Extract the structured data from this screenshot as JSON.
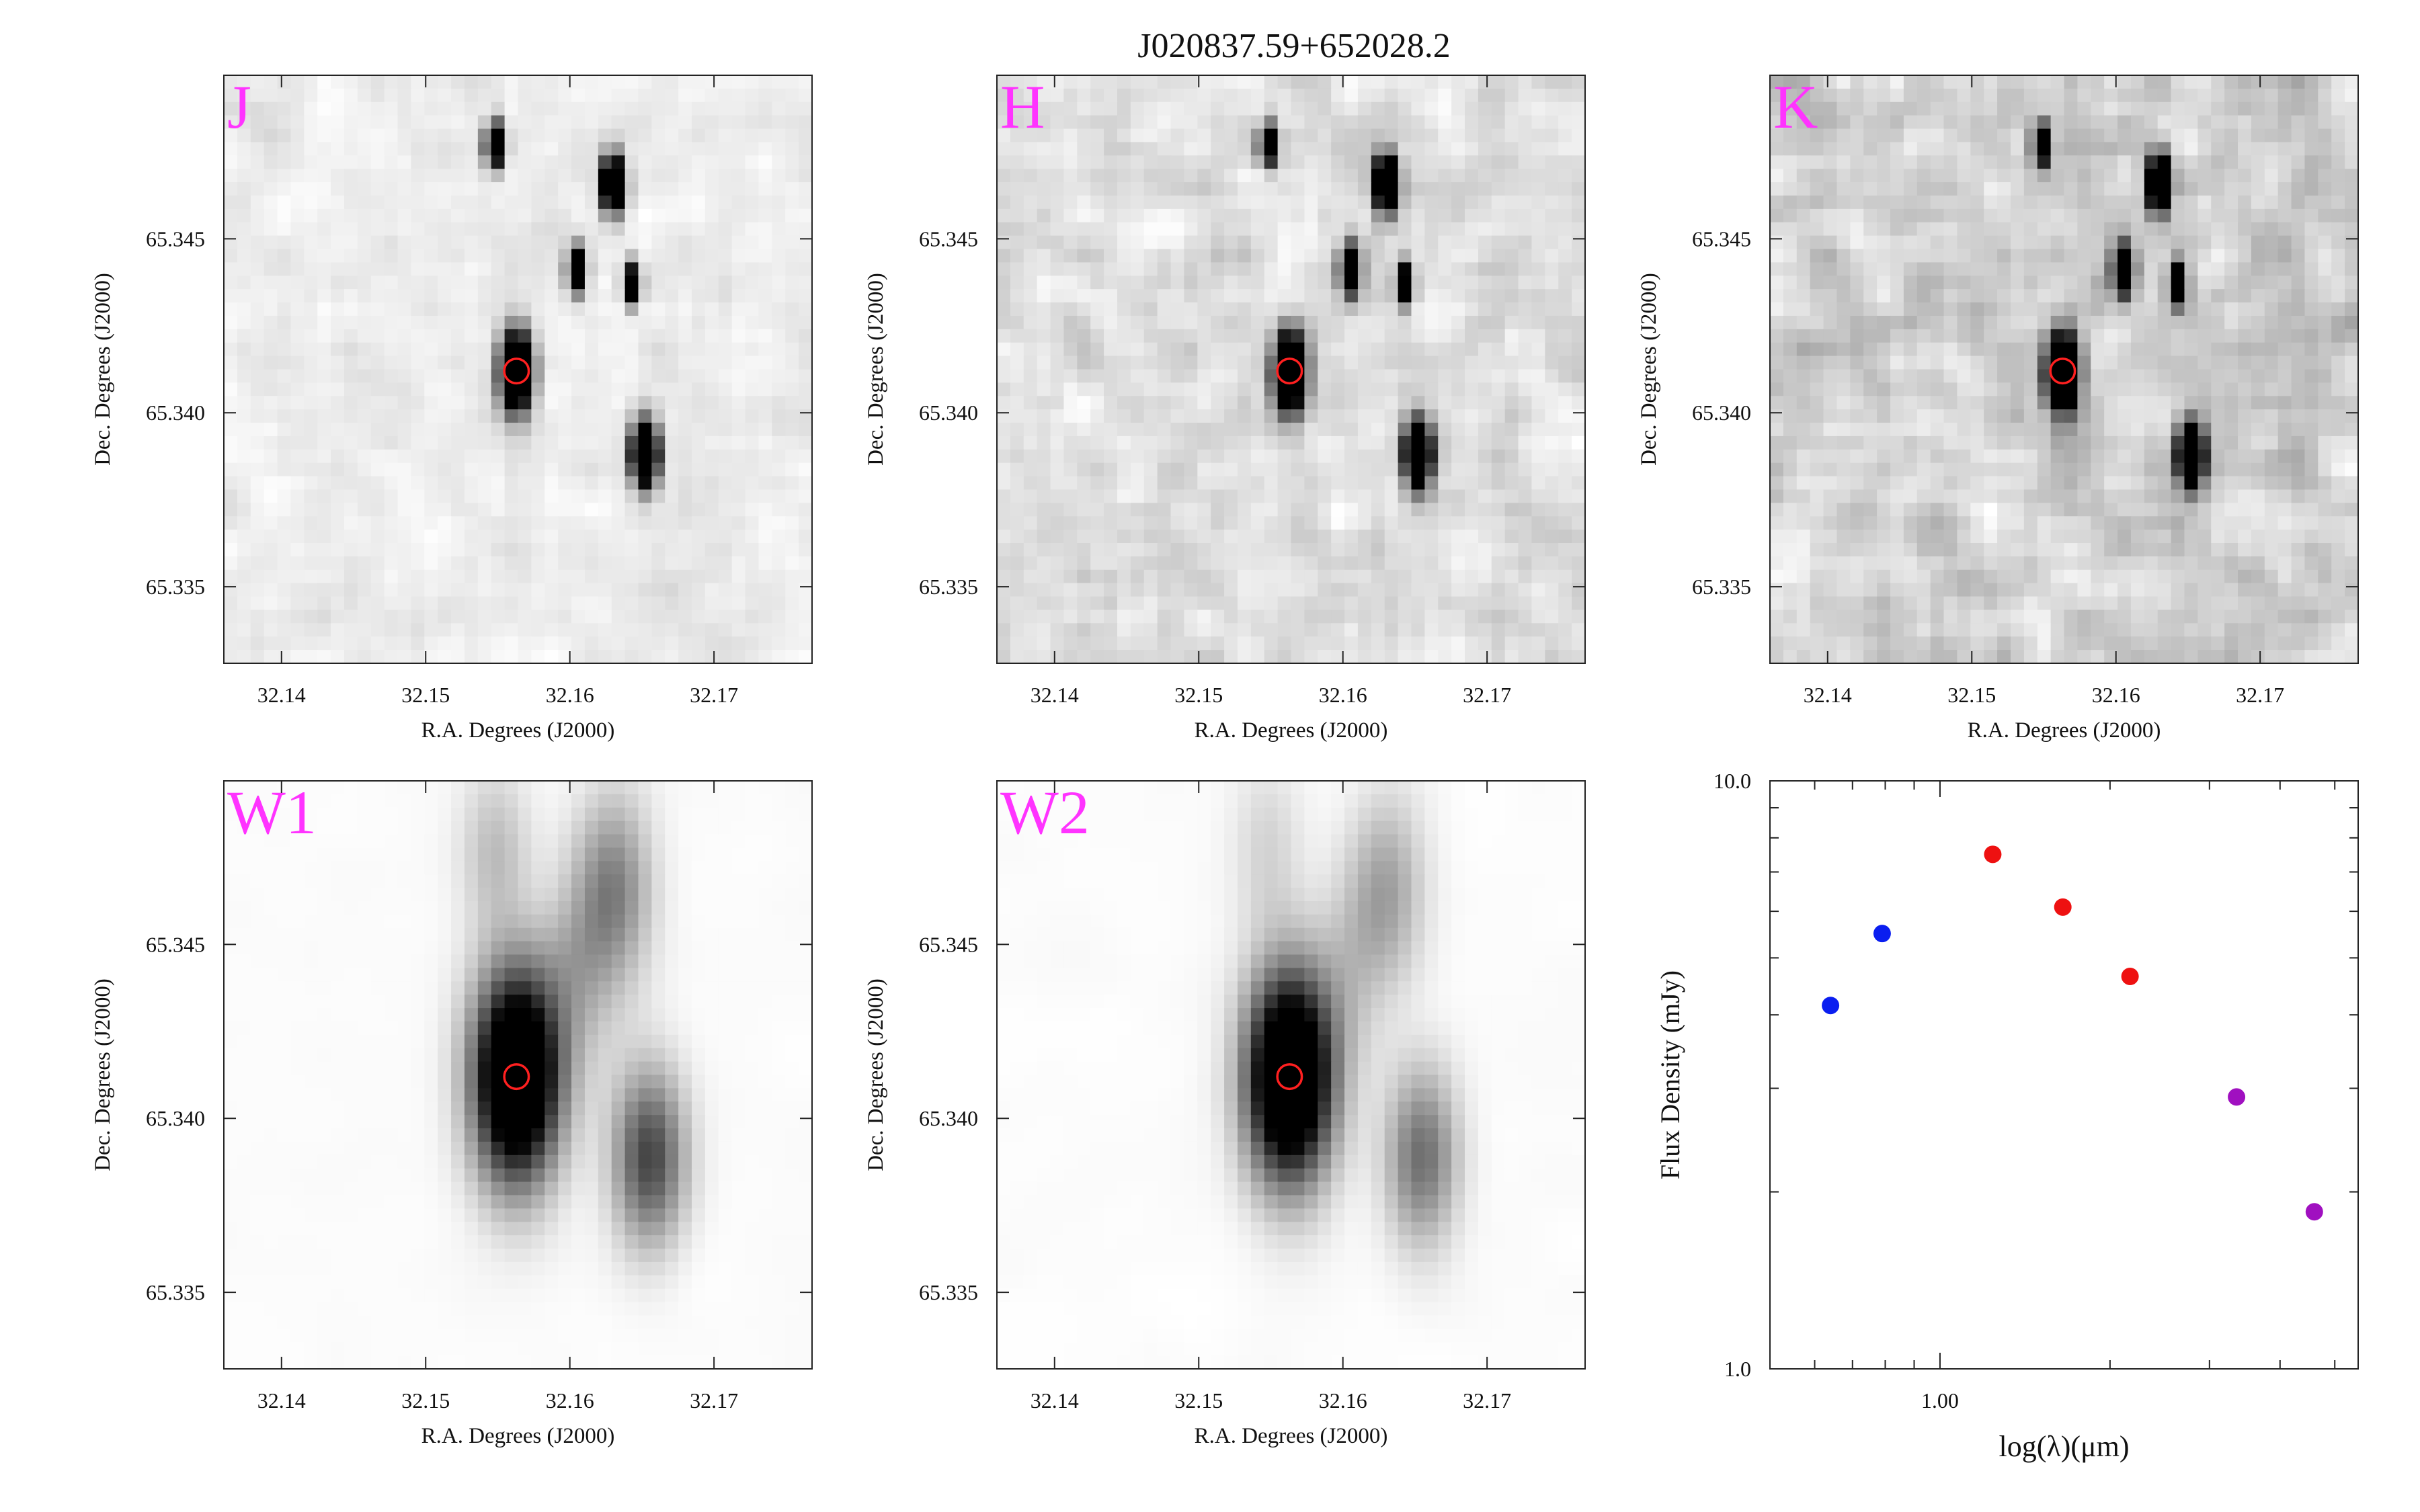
{
  "figure_title": "J020837.59+652028.2",
  "colors": {
    "band_label": "#ff33ff",
    "aperture": "#ff2020",
    "sed_blue": "#0a1ef0",
    "sed_red": "#ee1111",
    "sed_purple": "#a010c0",
    "axis": "#222222"
  },
  "image_axes": {
    "xlabel": "R.A. Degrees (J2000)",
    "ylabel": "Dec. Degrees (J2000)",
    "xlim": [
      32.136,
      32.1768
    ],
    "ylim": [
      65.3328,
      65.3497
    ],
    "xticks": [
      32.14,
      32.15,
      32.16,
      32.17
    ],
    "xtick_labels": [
      "32.14",
      "32.15",
      "32.16",
      "32.17"
    ],
    "yticks": [
      65.335,
      65.34,
      65.345
    ],
    "ytick_labels": [
      "65.335",
      "65.340",
      "65.345"
    ]
  },
  "panels": [
    {
      "band": "J",
      "noise_level": 0.35,
      "blur": "sharp",
      "sources": [
        {
          "ra": 32.1563,
          "dec": 65.3412,
          "brightness": 1.0,
          "size": 1.0
        },
        {
          "ra": 32.1652,
          "dec": 65.3388,
          "brightness": 0.95,
          "size": 0.85
        },
        {
          "ra": 32.1548,
          "dec": 65.3477,
          "brightness": 0.8,
          "size": 0.6
        },
        {
          "ra": 32.163,
          "dec": 65.3466,
          "brightness": 0.9,
          "size": 0.75
        },
        {
          "ra": 32.1605,
          "dec": 65.3441,
          "brightness": 0.7,
          "size": 0.6
        },
        {
          "ra": 32.1643,
          "dec": 65.3437,
          "brightness": 0.65,
          "size": 0.55
        }
      ]
    },
    {
      "band": "H",
      "noise_level": 0.55,
      "blur": "sharp",
      "sources": [
        {
          "ra": 32.1563,
          "dec": 65.3412,
          "brightness": 1.0,
          "size": 1.0
        },
        {
          "ra": 32.1652,
          "dec": 65.3388,
          "brightness": 0.95,
          "size": 0.85
        },
        {
          "ra": 32.1548,
          "dec": 65.3477,
          "brightness": 0.7,
          "size": 0.55
        },
        {
          "ra": 32.163,
          "dec": 65.3466,
          "brightness": 0.9,
          "size": 0.75
        },
        {
          "ra": 32.1605,
          "dec": 65.3441,
          "brightness": 0.8,
          "size": 0.65
        },
        {
          "ra": 32.1643,
          "dec": 65.3437,
          "brightness": 0.7,
          "size": 0.55
        }
      ]
    },
    {
      "band": "K",
      "noise_level": 0.8,
      "blur": "sharp",
      "sources": [
        {
          "ra": 32.1563,
          "dec": 65.3412,
          "brightness": 1.0,
          "size": 1.0
        },
        {
          "ra": 32.1652,
          "dec": 65.3388,
          "brightness": 0.9,
          "size": 0.85
        },
        {
          "ra": 32.1548,
          "dec": 65.3477,
          "brightness": 0.75,
          "size": 0.55
        },
        {
          "ra": 32.163,
          "dec": 65.3466,
          "brightness": 0.9,
          "size": 0.75
        },
        {
          "ra": 32.1605,
          "dec": 65.3441,
          "brightness": 0.8,
          "size": 0.65
        },
        {
          "ra": 32.1643,
          "dec": 65.3437,
          "brightness": 0.75,
          "size": 0.55
        }
      ]
    },
    {
      "band": "W1",
      "noise_level": 0.05,
      "blur": "wise",
      "sources": [
        {
          "ra": 32.1563,
          "dec": 65.3412,
          "brightness": 1.0,
          "size": 1.0
        },
        {
          "ra": 32.1655,
          "dec": 65.3389,
          "brightness": 0.45,
          "size": 0.85
        },
        {
          "ra": 32.163,
          "dec": 65.3466,
          "brightness": 0.3,
          "size": 0.9
        },
        {
          "ra": 32.1548,
          "dec": 65.3477,
          "brightness": 0.15,
          "size": 0.8
        },
        {
          "ra": 32.1605,
          "dec": 65.3441,
          "brightness": 0.15,
          "size": 0.9
        }
      ]
    },
    {
      "band": "W2",
      "noise_level": 0.05,
      "blur": "wise",
      "sources": [
        {
          "ra": 32.1563,
          "dec": 65.3412,
          "brightness": 1.0,
          "size": 1.0
        },
        {
          "ra": 32.1655,
          "dec": 65.3389,
          "brightness": 0.35,
          "size": 0.85
        },
        {
          "ra": 32.163,
          "dec": 65.3466,
          "brightness": 0.22,
          "size": 0.9
        },
        {
          "ra": 32.1548,
          "dec": 65.3477,
          "brightness": 0.1,
          "size": 0.8
        },
        {
          "ra": 32.1605,
          "dec": 65.3441,
          "brightness": 0.1,
          "size": 0.9
        }
      ]
    }
  ],
  "aperture": {
    "ra": 32.1563,
    "dec": 65.3412,
    "radius_deg": 0.00085
  },
  "chart_data": {
    "type": "scatter",
    "xlabel": "log(λ)(μm)",
    "ylabel": "Flux Density (mJy)",
    "x_scale": "log",
    "y_scale": "log",
    "xlim": [
      0.5,
      5.5
    ],
    "ylim": [
      1.0,
      10.0
    ],
    "xticks": [
      1.0
    ],
    "xtick_labels": [
      "1.00"
    ],
    "yticks": [
      1.0,
      10.0
    ],
    "ytick_labels": [
      "1.0",
      "10.0"
    ],
    "grid": false,
    "series": [
      {
        "color": "blue",
        "x": [
          0.64,
          0.79
        ],
        "y": [
          4.15,
          5.5
        ]
      },
      {
        "color": "red",
        "x": [
          1.24,
          1.65,
          2.17
        ],
        "y": [
          7.5,
          6.1,
          4.65
        ]
      },
      {
        "color": "purple",
        "x": [
          3.35,
          4.6
        ],
        "y": [
          2.9,
          1.85
        ]
      }
    ]
  }
}
